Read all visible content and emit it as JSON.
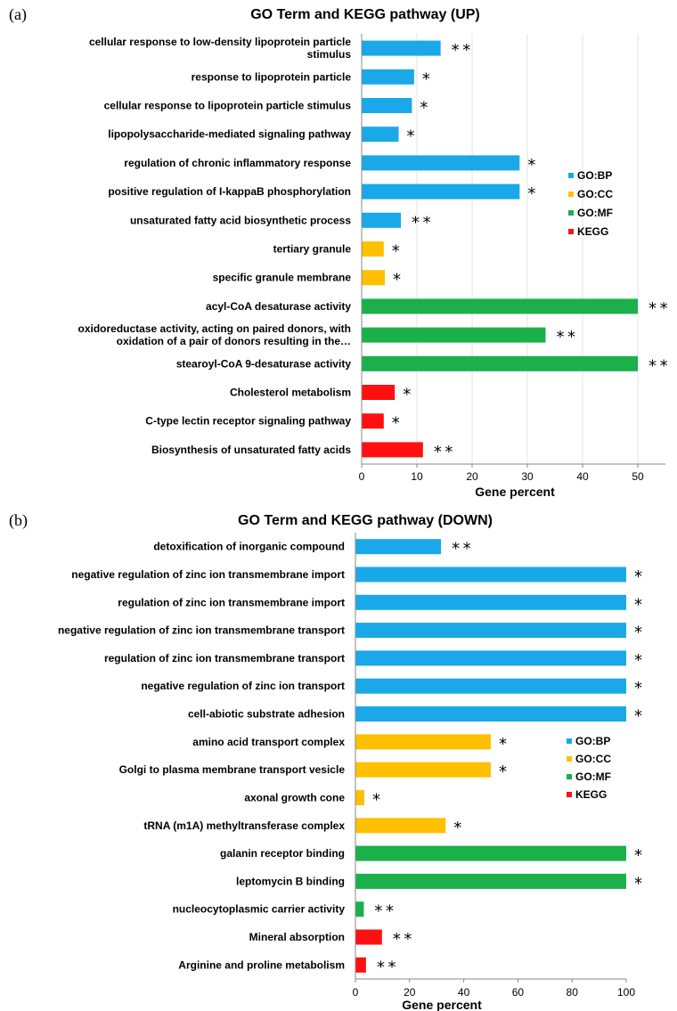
{
  "chart_data": [
    {
      "panel": "(a)",
      "type": "bar",
      "orientation": "horizontal",
      "title": "GO Term and KEGG pathway (UP)",
      "xlabel": "Gene percent",
      "xlim": [
        0,
        55
      ],
      "xticks": [
        0,
        10,
        20,
        30,
        40,
        50
      ],
      "grid": true,
      "legend_position": "right",
      "legend": [
        {
          "name": "GO:BP",
          "color": "#1aa8e8"
        },
        {
          "name": "GO:CC",
          "color": "#ffc000"
        },
        {
          "name": "GO:MF",
          "color": "#1bb04a"
        },
        {
          "name": "KEGG",
          "color": "#ff1010"
        }
      ],
      "bars": [
        {
          "label": [
            "cellular response to low-density lipoprotein particle",
            "stimulus"
          ],
          "value": 14.3,
          "group": "GO:BP",
          "sig": "**"
        },
        {
          "label": [
            "response to lipoprotein particle"
          ],
          "value": 9.5,
          "group": "GO:BP",
          "sig": "*"
        },
        {
          "label": [
            "cellular response to lipoprotein particle stimulus"
          ],
          "value": 9.1,
          "group": "GO:BP",
          "sig": "*"
        },
        {
          "label": [
            "lipopolysaccharide-mediated signaling pathway"
          ],
          "value": 6.7,
          "group": "GO:BP",
          "sig": "*"
        },
        {
          "label": [
            "regulation of chronic inflammatory response"
          ],
          "value": 28.6,
          "group": "GO:BP",
          "sig": "*"
        },
        {
          "label": [
            "positive regulation of I-kappaB phosphorylation"
          ],
          "value": 28.6,
          "group": "GO:BP",
          "sig": "*"
        },
        {
          "label": [
            "unsaturated fatty acid biosynthetic process"
          ],
          "value": 7.1,
          "group": "GO:BP",
          "sig": "**"
        },
        {
          "label": [
            "tertiary granule"
          ],
          "value": 4.0,
          "group": "GO:CC",
          "sig": "*"
        },
        {
          "label": [
            "specific granule membrane"
          ],
          "value": 4.2,
          "group": "GO:CC",
          "sig": "*"
        },
        {
          "label": [
            "acyl-CoA desaturase activity"
          ],
          "value": 50,
          "group": "GO:MF",
          "sig": "**"
        },
        {
          "label": [
            "oxidoreductase activity, acting on paired donors, with",
            "oxidation of a pair of donors resulting in the…"
          ],
          "value": 33.3,
          "group": "GO:MF",
          "sig": "**"
        },
        {
          "label": [
            "stearoyl-CoA 9-desaturase activity"
          ],
          "value": 50,
          "group": "GO:MF",
          "sig": "**"
        },
        {
          "label": [
            "Cholesterol metabolism"
          ],
          "value": 6.0,
          "group": "KEGG",
          "sig": "*"
        },
        {
          "label": [
            "C-type lectin receptor signaling pathway"
          ],
          "value": 4.0,
          "group": "KEGG",
          "sig": "*"
        },
        {
          "label": [
            "Biosynthesis of unsaturated fatty acids"
          ],
          "value": 11.1,
          "group": "KEGG",
          "sig": "**"
        }
      ]
    },
    {
      "panel": "(b)",
      "type": "bar",
      "orientation": "horizontal",
      "title": "GO Term and KEGG pathway (DOWN)",
      "xlabel": "Gene percent",
      "xlim": [
        0,
        100
      ],
      "xticks": [
        0,
        20,
        40,
        60,
        80,
        100
      ],
      "grid": false,
      "legend_position": "right",
      "legend": [
        {
          "name": "GO:BP",
          "color": "#1aa8e8"
        },
        {
          "name": "GO:CC",
          "color": "#ffc000"
        },
        {
          "name": "GO:MF",
          "color": "#1bb04a"
        },
        {
          "name": "KEGG",
          "color": "#ff1010"
        }
      ],
      "bars": [
        {
          "label": [
            "detoxification of inorganic compound"
          ],
          "value": 31.6,
          "group": "GO:BP",
          "sig": "**"
        },
        {
          "label": [
            "negative regulation of zinc ion transmembrane import"
          ],
          "value": 100,
          "group": "GO:BP",
          "sig": "*"
        },
        {
          "label": [
            "regulation of zinc ion transmembrane import"
          ],
          "value": 100,
          "group": "GO:BP",
          "sig": "*"
        },
        {
          "label": [
            "negative regulation of zinc ion transmembrane transport"
          ],
          "value": 100,
          "group": "GO:BP",
          "sig": "*"
        },
        {
          "label": [
            "regulation of zinc ion transmembrane transport"
          ],
          "value": 100,
          "group": "GO:BP",
          "sig": "*"
        },
        {
          "label": [
            "negative regulation of zinc ion transport"
          ],
          "value": 100,
          "group": "GO:BP",
          "sig": "*"
        },
        {
          "label": [
            "cell-abiotic substrate adhesion"
          ],
          "value": 100,
          "group": "GO:BP",
          "sig": "*"
        },
        {
          "label": [
            "amino acid transport complex"
          ],
          "value": 50,
          "group": "GO:CC",
          "sig": "*"
        },
        {
          "label": [
            "Golgi to plasma membrane transport vesicle"
          ],
          "value": 50,
          "group": "GO:CC",
          "sig": "*"
        },
        {
          "label": [
            "axonal growth cone"
          ],
          "value": 3.3,
          "group": "GO:CC",
          "sig": "*"
        },
        {
          "label": [
            "tRNA (m1A) methyltransferase complex"
          ],
          "value": 33.3,
          "group": "GO:CC",
          "sig": "*"
        },
        {
          "label": [
            "galanin receptor binding"
          ],
          "value": 100,
          "group": "GO:MF",
          "sig": "*"
        },
        {
          "label": [
            "leptomycin B binding"
          ],
          "value": 100,
          "group": "GO:MF",
          "sig": "*"
        },
        {
          "label": [
            "nucleocytoplasmic carrier activity"
          ],
          "value": 3.1,
          "group": "GO:MF",
          "sig": "**"
        },
        {
          "label": [
            "Mineral absorption"
          ],
          "value": 9.8,
          "group": "KEGG",
          "sig": "**"
        },
        {
          "label": [
            "Arginine and proline metabolism"
          ],
          "value": 3.9,
          "group": "KEGG",
          "sig": "**"
        }
      ]
    }
  ]
}
